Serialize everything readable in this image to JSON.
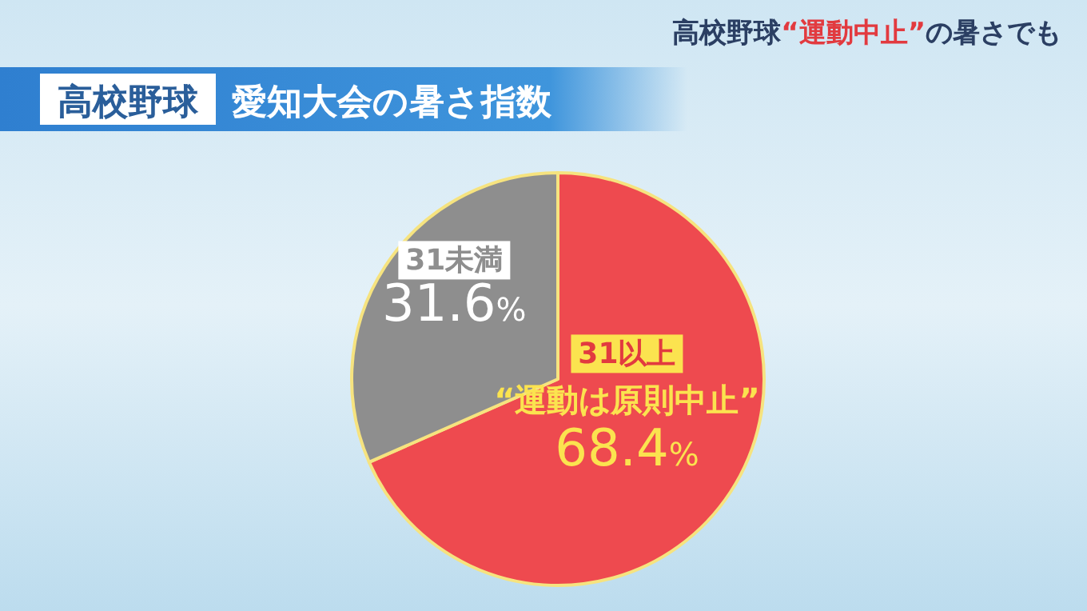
{
  "chart_data": {
    "type": "pie",
    "title": "高校野球 愛知大会の暑さ指数",
    "subtitle": "高校野球“運動中止”の暑さでも",
    "categories": [
      "31以上",
      "31未満"
    ],
    "values": [
      68.4,
      31.6
    ],
    "colors": [
      "#ee4a4f",
      "#8e8e8e"
    ],
    "annotations": [
      {
        "text": "“運動は原則中止”",
        "x": "31以上"
      }
    ],
    "value_labels": [
      "68.4%",
      "31.6%"
    ]
  }
}
